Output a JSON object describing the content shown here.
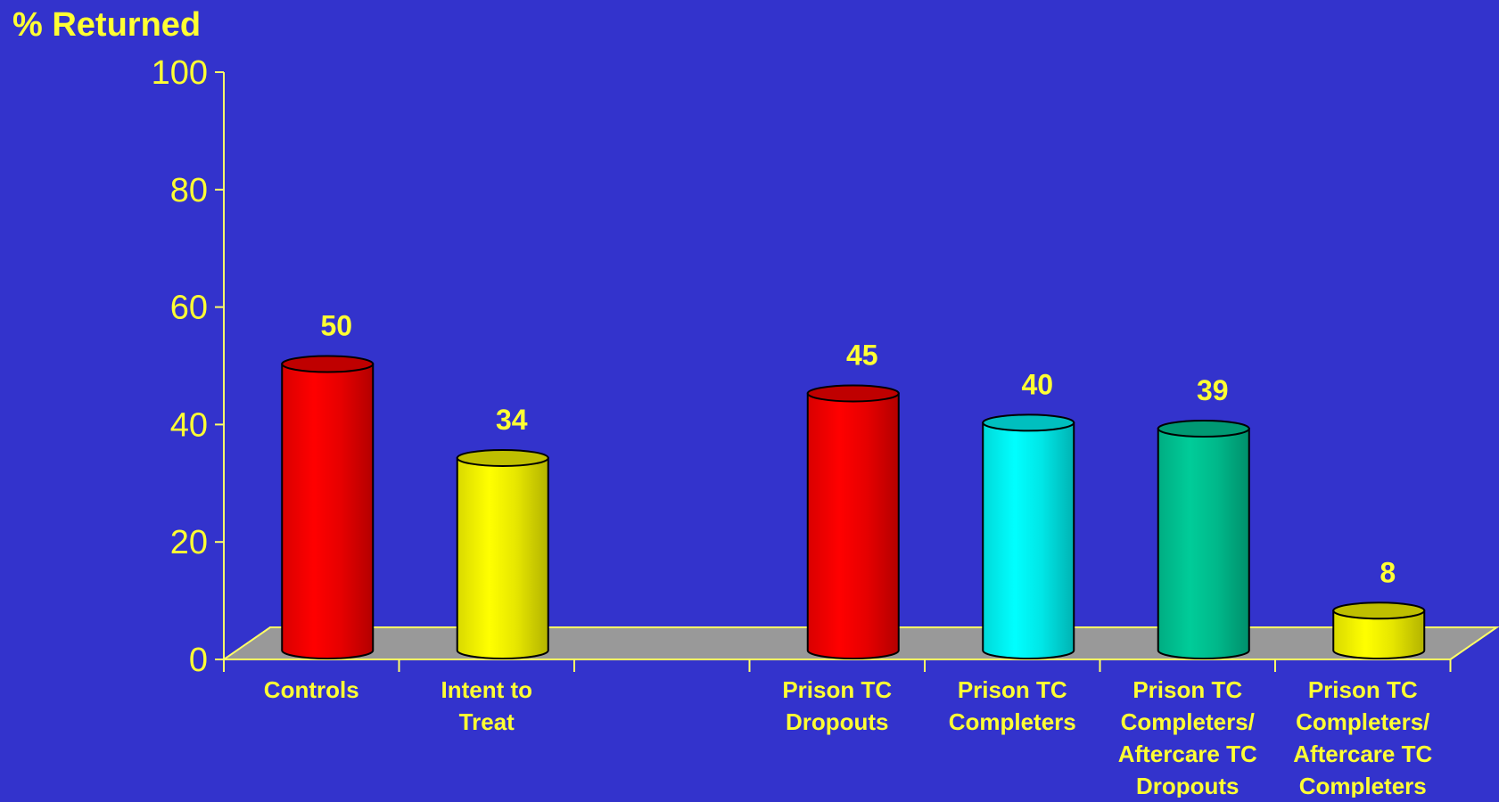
{
  "colors": {
    "background": "#3333CC",
    "text": "#FFFF33",
    "axis": "#FFFF66",
    "floor": "#999999"
  },
  "chart_data": {
    "type": "bar",
    "ylabel": "% Returned",
    "ylim": [
      0,
      100
    ],
    "yticks": [
      0,
      20,
      40,
      60,
      80,
      100
    ],
    "grid": false,
    "legend": "none",
    "style": "3d-cylinder",
    "categories": [
      [
        "Controls"
      ],
      [
        "Intent to",
        "Treat"
      ],
      [],
      [
        "Prison TC",
        "Dropouts"
      ],
      [
        "Prison TC",
        "Completers"
      ],
      [
        "Prison TC",
        "Completers/",
        "Aftercare TC",
        "Dropouts"
      ],
      [
        "Prison TC",
        "Completers/",
        "Aftercare TC",
        "Completers"
      ]
    ],
    "values": [
      50,
      34,
      null,
      45,
      40,
      39,
      8
    ],
    "value_labels": [
      "50",
      "34",
      "",
      "45",
      "40",
      "39",
      "8"
    ],
    "bar_colors": [
      "#FF0000",
      "#FFFF00",
      null,
      "#FF0000",
      "#00FFFF",
      "#00CC99",
      "#FFFF00"
    ]
  }
}
